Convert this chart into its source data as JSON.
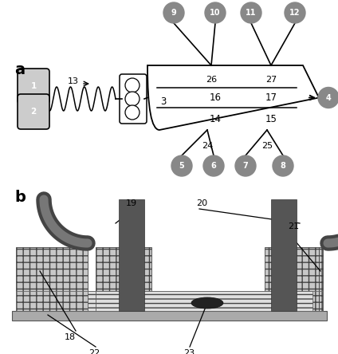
{
  "bg_color": "#ffffff",
  "gray_circle_fill": "#888888",
  "gray_circle_text": "#ffffff",
  "dark_tube_color": "#555555",
  "medium_gray": "#999999",
  "light_gray": "#cccccc",
  "hatch_color": "#444444",
  "substrate_color": "#aaaaaa",
  "channel_color": "#dddddd"
}
